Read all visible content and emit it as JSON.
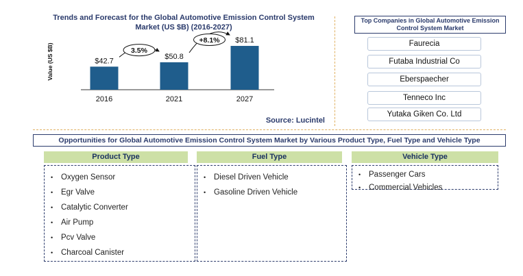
{
  "chart_title": "Trends and Forecast for the Global Automotive Emission Control System Market  (US $B) (2016-2027)",
  "source": "Source: Lucintel",
  "chart_data": {
    "type": "bar",
    "categories": [
      "2016",
      "2021",
      "2027"
    ],
    "values": [
      42.7,
      50.8,
      81.1
    ],
    "value_labels": [
      "$42.7",
      "$50.8",
      "$81.1"
    ],
    "ylabel": "Value (US $B)",
    "ylim": [
      0,
      90
    ],
    "grid": false,
    "bar_color": "#1f5d8c",
    "cagr": [
      {
        "label": "3.5%",
        "from": "2016",
        "to": "2021"
      },
      {
        "label": "+8.1%",
        "from": "2021",
        "to": "2027"
      }
    ]
  },
  "companies": {
    "title": "Top Companies in Global Automotive Emission Control System Market",
    "items": [
      "Faurecia",
      "Futaba Industrial Co",
      "Eberspaecher",
      "Tenneco Inc",
      "Yutaka Giken Co. Ltd"
    ]
  },
  "opportunities": {
    "title": "Opportunities for Global Automotive Emission Control System Market by Various Product Type, Fuel Type and Vehicle Type",
    "columns": [
      {
        "heading": "Product Type",
        "items": [
          "Oxygen Sensor",
          "Egr Valve",
          "Catalytic Converter",
          "Air Pump",
          "Pcv Valve",
          "Charcoal Canister"
        ]
      },
      {
        "heading": "Fuel Type",
        "items": [
          "Diesel Driven Vehicle",
          "Gasoline Driven Vehicle"
        ]
      },
      {
        "heading": "Vehicle Type",
        "items": [
          "Passenger Cars",
          "Commercial Vehicles"
        ]
      }
    ]
  },
  "colors": {
    "accent": "#2a3a6b",
    "header_fill": "#cde0a6",
    "divider": "#e0b060"
  }
}
